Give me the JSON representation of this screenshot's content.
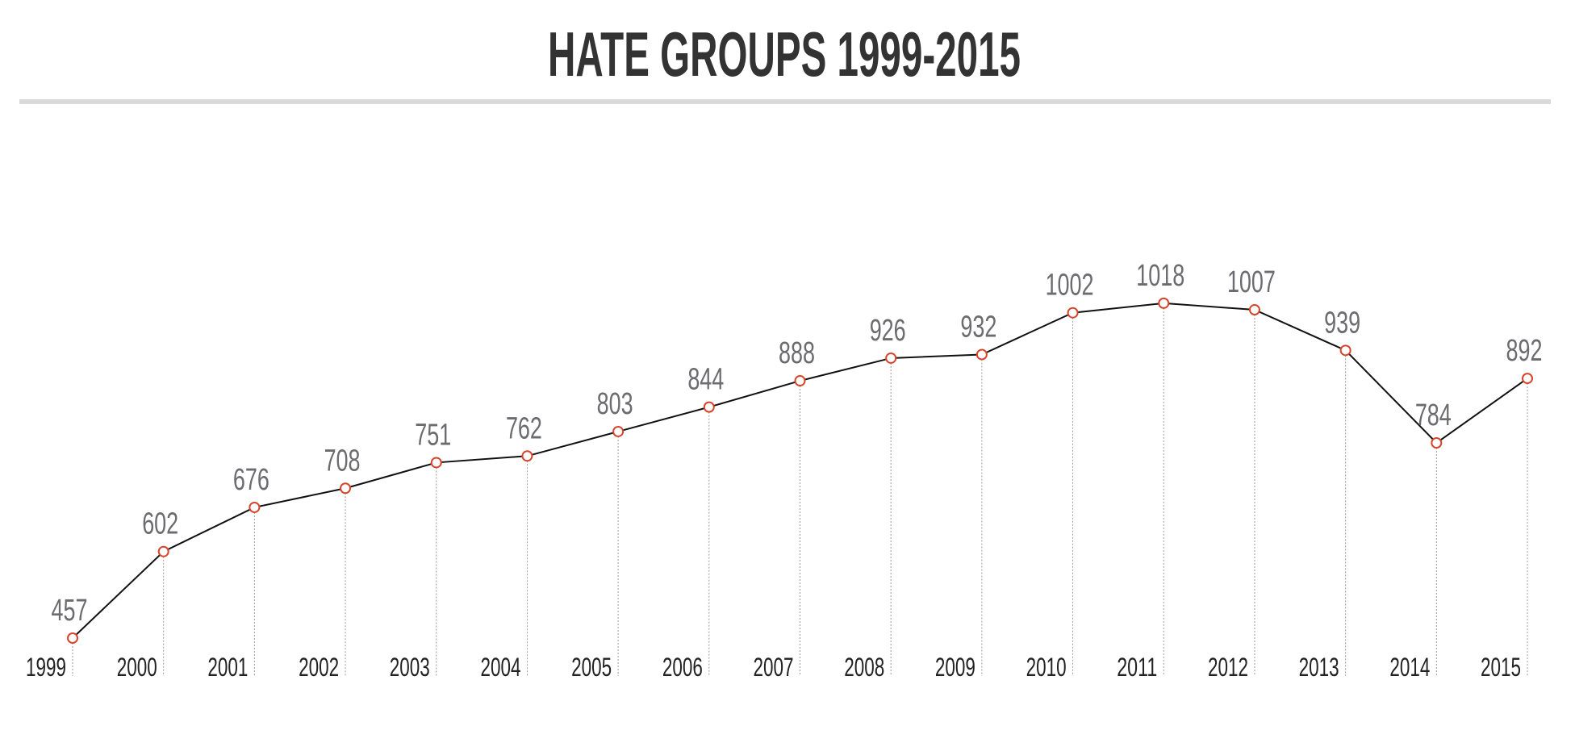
{
  "chart_data": {
    "type": "line",
    "title": "HATE GROUPS 1999-2015",
    "xlabel": "",
    "ylabel": "",
    "categories": [
      "1999",
      "2000",
      "2001",
      "2002",
      "2003",
      "2004",
      "2005",
      "2006",
      "2007",
      "2008",
      "2009",
      "2010",
      "2011",
      "2012",
      "2013",
      "2014",
      "2015"
    ],
    "values": [
      457,
      602,
      676,
      708,
      751,
      762,
      803,
      844,
      888,
      926,
      932,
      1002,
      1018,
      1007,
      939,
      784,
      892
    ],
    "data_labels": true,
    "grid": false,
    "legend": "none",
    "colors": {
      "line": "#111111",
      "marker_stroke": "#d6452b",
      "marker_fill": "#ffffff",
      "title": "#333333",
      "value_label": "#6b6b70",
      "year_label": "#222222",
      "rule": "#d9d9d9",
      "drop_line": "#9a9a9a"
    }
  }
}
